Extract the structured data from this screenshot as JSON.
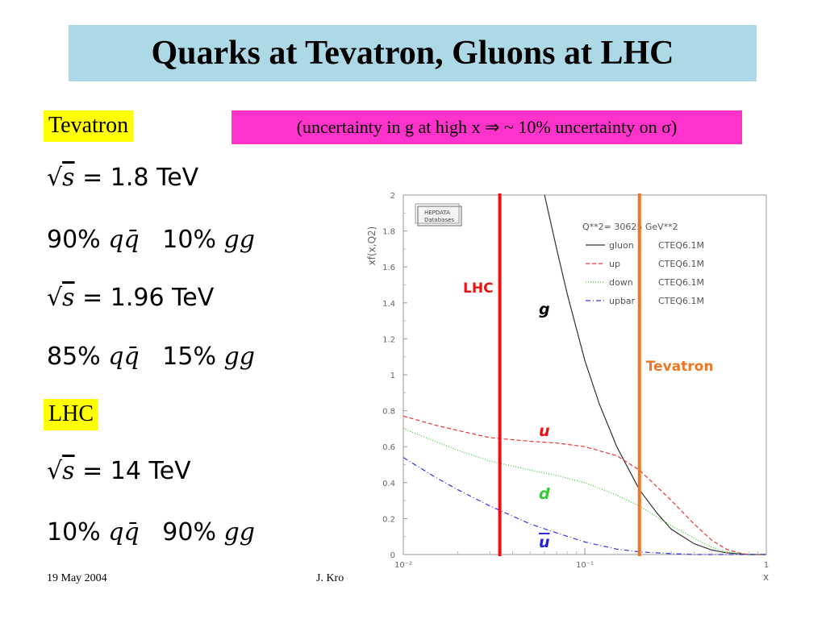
{
  "title": "Quarks at Tevatron, Gluons at LHC",
  "tevatron_tag": "Tevatron",
  "lhc_tag": "LHC",
  "note": "(uncertainty in g at high x ⇒ ~ 10% uncertainty on σ)",
  "equations": {
    "tev1": {
      "sqrt_s": "= 1.8 TeV",
      "qq_pct": "90%",
      "qq": "qq̄",
      "gg_pct": "10%",
      "gg": "gg"
    },
    "tev2": {
      "sqrt_s": "= 1.96 TeV",
      "qq_pct": "85%",
      "qq": "qq̄",
      "gg_pct": "15%",
      "gg": "gg"
    },
    "lhc": {
      "sqrt_s": "= 14 TeV",
      "qq_pct": "10%",
      "qq": "qq̄",
      "gg_pct": "90%",
      "gg": "gg"
    }
  },
  "footer": {
    "date": "19 May 2004",
    "author": "J. Kro"
  },
  "colors": {
    "title_bg": "#add8e6",
    "tag_bg": "#ffff00",
    "note_bg": "#ff33cc",
    "lhc_line": "#ee1111",
    "tevatron_line": "#ee7722"
  },
  "chart_data": {
    "type": "line",
    "ylabel": "xf(x,Q2)",
    "xlabel": "x",
    "xscale": "log",
    "xlim": [
      0.01,
      1
    ],
    "ylim": [
      0,
      2
    ],
    "yticks": [
      "0",
      "0.2",
      "0.4",
      "0.6",
      "0.8",
      "1",
      "1.2",
      "1.4",
      "1.6",
      "1.8",
      "2"
    ],
    "xticks": [
      "10⁻²",
      "10⁻¹",
      "1"
    ],
    "logo": [
      "HEPDATA",
      "Databases"
    ],
    "legend_header": "Q**2=    30625    GeV**2",
    "legend": [
      {
        "name": "gluon",
        "pdf": "CTEQ6.1M",
        "color": "#333333",
        "style": "solid"
      },
      {
        "name": "up",
        "pdf": "CTEQ6.1M",
        "color": "#ee3333",
        "style": "dashed"
      },
      {
        "name": "down",
        "pdf": "CTEQ6.1M",
        "color": "#33cc33",
        "style": "dotted"
      },
      {
        "name": "upbar",
        "pdf": "CTEQ6.1M",
        "color": "#3333ee",
        "style": "dashdot"
      }
    ],
    "series": [
      {
        "name": "gluon",
        "x": [
          0.06,
          0.07,
          0.08,
          0.1,
          0.12,
          0.15,
          0.2,
          0.25,
          0.3,
          0.4,
          0.5,
          0.6,
          0.8,
          1.0
        ],
        "y": [
          2.0,
          1.7,
          1.45,
          1.08,
          0.84,
          0.6,
          0.36,
          0.23,
          0.14,
          0.06,
          0.025,
          0.01,
          0.0,
          0.0
        ]
      },
      {
        "name": "up",
        "x": [
          0.01,
          0.015,
          0.02,
          0.03,
          0.05,
          0.07,
          0.1,
          0.15,
          0.2,
          0.3,
          0.4,
          0.5,
          0.6,
          0.7,
          0.8,
          1.0
        ],
        "y": [
          0.77,
          0.72,
          0.69,
          0.65,
          0.63,
          0.62,
          0.6,
          0.55,
          0.47,
          0.3,
          0.17,
          0.08,
          0.03,
          0.01,
          0.0,
          0.0
        ]
      },
      {
        "name": "down",
        "x": [
          0.01,
          0.015,
          0.02,
          0.03,
          0.05,
          0.07,
          0.1,
          0.15,
          0.2,
          0.3,
          0.4,
          0.5,
          0.6,
          0.8,
          1.0
        ],
        "y": [
          0.7,
          0.63,
          0.58,
          0.52,
          0.47,
          0.44,
          0.4,
          0.33,
          0.27,
          0.16,
          0.09,
          0.04,
          0.015,
          0.0,
          0.0
        ]
      },
      {
        "name": "upbar",
        "x": [
          0.01,
          0.015,
          0.02,
          0.03,
          0.05,
          0.07,
          0.1,
          0.15,
          0.2,
          0.3,
          0.4,
          1.0
        ],
        "y": [
          0.54,
          0.43,
          0.36,
          0.27,
          0.17,
          0.12,
          0.07,
          0.03,
          0.015,
          0.005,
          0.0,
          0.0
        ]
      }
    ],
    "vlines": [
      {
        "label": "LHC",
        "x": 0.034,
        "color": "#ee1111"
      },
      {
        "label": "Tevatron",
        "x": 0.2,
        "color": "#ee7722"
      }
    ],
    "curve_labels": [
      {
        "text": "g",
        "color": "#000000"
      },
      {
        "text": "u",
        "color": "#ee1111"
      },
      {
        "text": "d",
        "color": "#33cc33"
      },
      {
        "text": "u",
        "color": "#2222dd",
        "overline": true
      }
    ]
  }
}
